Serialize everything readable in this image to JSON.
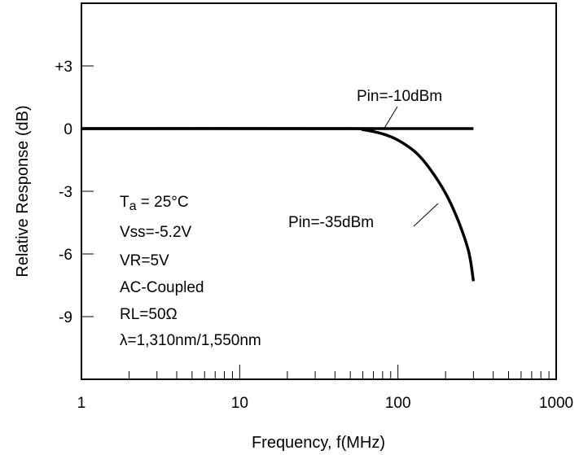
{
  "chart_data": {
    "type": "line",
    "title": "",
    "xlabel": "Frequency, f(MHz)",
    "ylabel": "Relative Response (dB)",
    "xscale": "log",
    "xlim": [
      1,
      1000
    ],
    "ylim": [
      -12,
      6
    ],
    "x_ticks": [
      1,
      10,
      100,
      1000
    ],
    "x_tick_labels": [
      "1",
      "10",
      "100",
      "1000"
    ],
    "y_ticks": [
      3,
      0,
      -3,
      -6,
      -9
    ],
    "y_tick_labels": [
      "+3",
      "0",
      "-3",
      "-6",
      "-9"
    ],
    "grid": false,
    "series": [
      {
        "name": "Pin=-10dBm",
        "x": [
          1,
          300
        ],
        "y": [
          0,
          0
        ]
      },
      {
        "name": "Pin=-35dBm",
        "x": [
          1,
          50,
          60,
          80,
          100,
          130,
          160,
          200,
          240,
          280,
          300
        ],
        "y": [
          0,
          0,
          -0.05,
          -0.25,
          -0.55,
          -1.15,
          -1.95,
          -3.1,
          -4.4,
          -5.9,
          -7.3
        ]
      }
    ],
    "annotations": [
      {
        "text": "Pin=-10dBm",
        "target_series": 0
      },
      {
        "text": "Pin=-35dBm",
        "target_series": 1
      }
    ],
    "conditions": {
      "ta_symbol": "T",
      "ta_subscript": "a",
      "ta_value": " = 25°C",
      "vss": "Vss=-5.2V",
      "vr": "VR=5V",
      "coupling": "AC-Coupled",
      "rl": "RL=50Ω",
      "wavelength": "λ=1,310nm/1,550nm"
    }
  }
}
